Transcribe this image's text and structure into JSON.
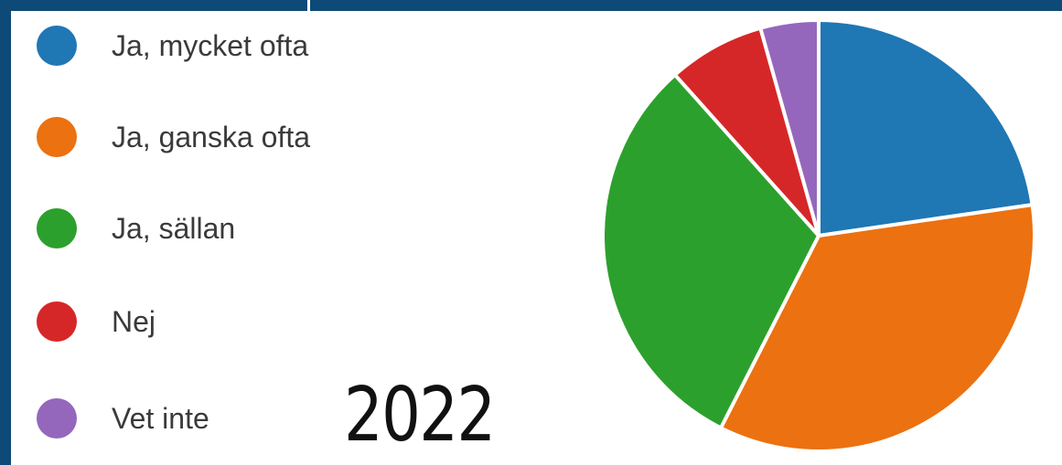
{
  "chart_data": {
    "type": "pie",
    "title": "",
    "annotation": "2022",
    "legend_position": "left",
    "categories": [
      "Ja, mycket ofta",
      "Ja, ganska ofta",
      "Ja, sällan",
      "Nej",
      "Vet inte"
    ],
    "values": [
      23.5,
      36.0,
      32.0,
      7.5,
      4.5
    ],
    "colors": [
      "#1f77b4",
      "#ec7110",
      "#2ca02c",
      "#d62728",
      "#9467bd"
    ]
  }
}
